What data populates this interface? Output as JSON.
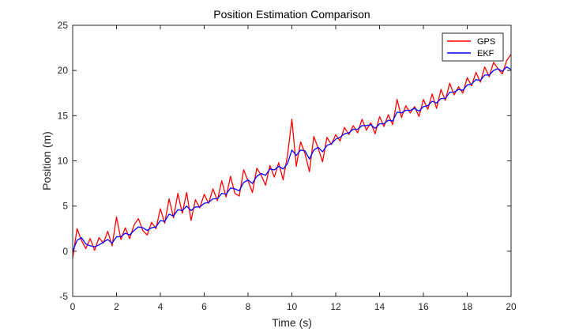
{
  "chart_data": {
    "type": "line",
    "title": "Position Estimation Comparison",
    "xlabel": "Time (s)",
    "ylabel": "Position (m)",
    "xlim": [
      0,
      20
    ],
    "ylim": [
      -5,
      25
    ],
    "xticks": [
      0,
      2,
      4,
      6,
      8,
      10,
      12,
      14,
      16,
      18,
      20
    ],
    "yticks": [
      -5,
      0,
      5,
      10,
      15,
      20,
      25
    ],
    "grid": false,
    "legend_position": "top-right",
    "series": [
      {
        "name": "GPS",
        "color": "#ff0000",
        "x": [
          0,
          0.2,
          0.4,
          0.6,
          0.8,
          1.0,
          1.2,
          1.4,
          1.6,
          1.8,
          2.0,
          2.2,
          2.4,
          2.6,
          2.8,
          3.0,
          3.2,
          3.4,
          3.6,
          3.8,
          4.0,
          4.2,
          4.4,
          4.6,
          4.8,
          5.0,
          5.2,
          5.4,
          5.6,
          5.8,
          6.0,
          6.2,
          6.4,
          6.6,
          6.8,
          7.0,
          7.2,
          7.4,
          7.6,
          7.8,
          8.0,
          8.2,
          8.4,
          8.6,
          8.8,
          9.0,
          9.2,
          9.4,
          9.6,
          9.8,
          10.0,
          10.2,
          10.4,
          10.6,
          10.8,
          11.0,
          11.2,
          11.4,
          11.6,
          11.8,
          12.0,
          12.2,
          12.4,
          12.6,
          12.8,
          13.0,
          13.2,
          13.4,
          13.6,
          13.8,
          14.0,
          14.2,
          14.4,
          14.6,
          14.8,
          15.0,
          15.2,
          15.4,
          15.6,
          15.8,
          16.0,
          16.2,
          16.4,
          16.6,
          16.8,
          17.0,
          17.2,
          17.4,
          17.6,
          17.8,
          18.0,
          18.2,
          18.4,
          18.6,
          18.8,
          19.0,
          19.2,
          19.4,
          19.6,
          19.8,
          20.0
        ],
        "values": [
          -0.8,
          2.5,
          1.2,
          0.3,
          1.4,
          0.1,
          1.5,
          0.9,
          2.2,
          0.6,
          3.8,
          1.3,
          2.6,
          1.4,
          2.9,
          3.6,
          2.3,
          1.8,
          3.2,
          2.5,
          4.7,
          3.1,
          5.8,
          3.7,
          6.4,
          4.2,
          6.5,
          3.4,
          5.7,
          4.8,
          6.3,
          5.3,
          6.9,
          5.6,
          7.8,
          6.0,
          8.3,
          6.4,
          6.1,
          9.0,
          7.8,
          6.5,
          9.2,
          8.4,
          7.3,
          9.5,
          8.2,
          9.8,
          7.9,
          10.6,
          14.6,
          9.4,
          12.1,
          10.8,
          8.8,
          12.7,
          11.4,
          9.9,
          12.6,
          11.8,
          12.9,
          12.2,
          13.7,
          12.9,
          13.9,
          13.1,
          14.6,
          13.4,
          14.2,
          13.0,
          14.9,
          13.8,
          15.1,
          14.0,
          16.8,
          14.8,
          16.1,
          15.3,
          16.0,
          14.9,
          16.8,
          15.7,
          17.4,
          15.8,
          17.9,
          16.7,
          18.6,
          17.3,
          18.2,
          17.5,
          19.2,
          18.3,
          19.8,
          18.7,
          20.4,
          19.3,
          20.9,
          20.2,
          19.6,
          21.1,
          21.8
        ]
      },
      {
        "name": "EKF",
        "color": "#0000ff",
        "x": [
          0,
          0.2,
          0.4,
          0.6,
          0.8,
          1.0,
          1.2,
          1.4,
          1.6,
          1.8,
          2.0,
          2.2,
          2.4,
          2.6,
          2.8,
          3.0,
          3.2,
          3.4,
          3.6,
          3.8,
          4.0,
          4.2,
          4.4,
          4.6,
          4.8,
          5.0,
          5.2,
          5.4,
          5.6,
          5.8,
          6.0,
          6.2,
          6.4,
          6.6,
          6.8,
          7.0,
          7.2,
          7.4,
          7.6,
          7.8,
          8.0,
          8.2,
          8.4,
          8.6,
          8.8,
          9.0,
          9.2,
          9.4,
          9.6,
          9.8,
          10.0,
          10.2,
          10.4,
          10.6,
          10.8,
          11.0,
          11.2,
          11.4,
          11.6,
          11.8,
          12.0,
          12.2,
          12.4,
          12.6,
          12.8,
          13.0,
          13.2,
          13.4,
          13.6,
          13.8,
          14.0,
          14.2,
          14.4,
          14.6,
          14.8,
          15.0,
          15.2,
          15.4,
          15.6,
          15.8,
          16.0,
          16.2,
          16.4,
          16.6,
          16.8,
          17.0,
          17.2,
          17.4,
          17.6,
          17.8,
          18.0,
          18.2,
          18.4,
          18.6,
          18.8,
          19.0,
          19.2,
          19.4,
          19.6,
          19.8,
          20.0
        ],
        "values": [
          0.0,
          1.2,
          1.5,
          0.8,
          0.6,
          0.5,
          0.7,
          1.0,
          1.3,
          0.9,
          1.6,
          1.6,
          2.0,
          1.8,
          2.3,
          2.7,
          2.6,
          2.3,
          2.6,
          2.7,
          3.4,
          3.3,
          4.1,
          3.9,
          4.6,
          4.5,
          5.0,
          4.5,
          4.9,
          4.9,
          5.3,
          5.4,
          5.8,
          5.8,
          6.4,
          6.3,
          7.0,
          6.9,
          6.7,
          7.6,
          7.9,
          7.5,
          8.3,
          8.6,
          8.4,
          9.1,
          9.0,
          9.4,
          9.1,
          9.7,
          11.2,
          10.6,
          11.2,
          11.1,
          10.2,
          11.2,
          11.5,
          11.0,
          11.7,
          11.9,
          12.4,
          12.6,
          13.0,
          13.1,
          13.5,
          13.5,
          13.9,
          13.9,
          14.0,
          13.6,
          14.1,
          14.1,
          14.5,
          14.4,
          15.4,
          15.3,
          15.6,
          15.6,
          15.8,
          15.5,
          16.0,
          16.1,
          16.6,
          16.4,
          16.9,
          16.9,
          17.6,
          17.6,
          17.9,
          17.8,
          18.4,
          18.5,
          19.0,
          18.9,
          19.5,
          19.5,
          20.0,
          20.2,
          19.9,
          20.4,
          20.1
        ]
      }
    ]
  }
}
